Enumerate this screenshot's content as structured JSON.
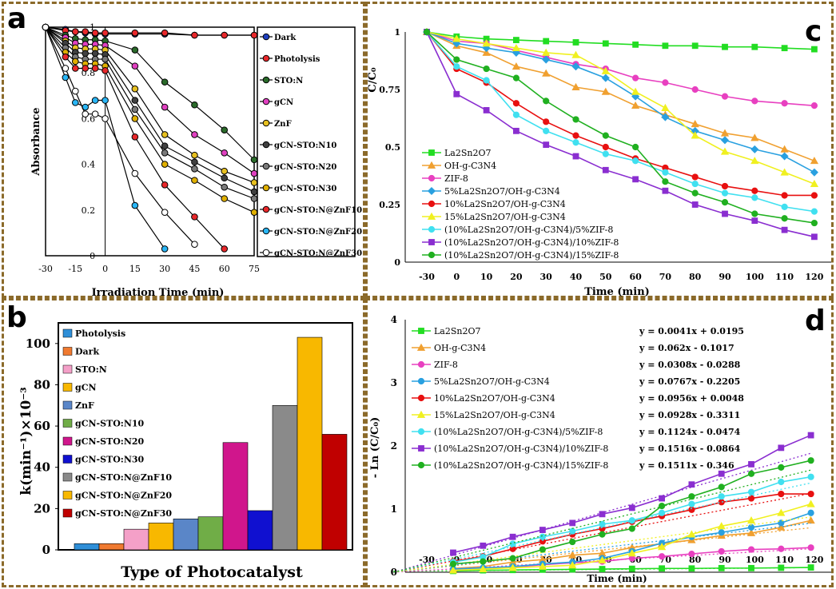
{
  "chart_data": [
    {
      "panel": "a",
      "type": "line",
      "xlabel": "Irradiation Time (min)",
      "ylabel": "Absorbance",
      "x": [
        -30,
        -20,
        -15,
        -10,
        -5,
        0,
        15,
        30,
        45,
        60,
        75
      ],
      "xticks": [
        "-30",
        "-15",
        "0",
        "15",
        "30",
        "45",
        "60",
        "75"
      ],
      "yticks": [
        "0",
        "0.2",
        "0.4",
        "0.6",
        "0.8",
        "1"
      ],
      "xlim": [
        -30,
        75
      ],
      "ylim": [
        0,
        1
      ],
      "series": [
        {
          "name": "Dark",
          "color": "#1f3fbf",
          "values": [
            1,
            0.99,
            0.98,
            0.975,
            0.97,
            0.97,
            0.97,
            0.97,
            0.965,
            0.965,
            0.965
          ]
        },
        {
          "name": "Photolysis",
          "color": "#e8282b",
          "values": [
            1,
            0.985,
            0.98,
            0.98,
            0.975,
            0.975,
            0.975,
            0.975,
            0.965,
            0.965,
            0.965
          ]
        },
        {
          "name": "STO:N",
          "color": "#2a6a2a",
          "values": [
            1,
            0.965,
            0.95,
            0.945,
            0.945,
            0.94,
            0.9,
            0.76,
            0.66,
            0.55,
            0.42
          ]
        },
        {
          "name": "gCN",
          "color": "#e040c0",
          "values": [
            1,
            0.955,
            0.93,
            0.925,
            0.925,
            0.92,
            0.83,
            0.65,
            0.53,
            0.45,
            0.36
          ]
        },
        {
          "name": "ZnF",
          "color": "#e7c020",
          "values": [
            1,
            0.94,
            0.91,
            0.905,
            0.905,
            0.9,
            0.73,
            0.53,
            0.44,
            0.37,
            0.32
          ]
        },
        {
          "name": "gCN-STO:N10",
          "color": "#404040",
          "values": [
            1,
            0.93,
            0.89,
            0.885,
            0.885,
            0.88,
            0.68,
            0.48,
            0.41,
            0.34,
            0.28
          ]
        },
        {
          "name": "gCN-STO:N20",
          "color": "#7a7a7a",
          "values": [
            1,
            0.91,
            0.87,
            0.86,
            0.86,
            0.86,
            0.64,
            0.45,
            0.38,
            0.3,
            0.25
          ]
        },
        {
          "name": "gCN-STO:N30",
          "color": "#e0b000",
          "values": [
            1,
            0.89,
            0.85,
            0.84,
            0.84,
            0.83,
            0.6,
            0.4,
            0.33,
            0.25,
            0.19
          ]
        },
        {
          "name": "gCN-STO:N@ZnF10",
          "color": "#e8282b",
          "values": [
            1,
            0.87,
            0.82,
            0.82,
            0.82,
            0.81,
            0.52,
            0.31,
            0.17,
            0.03,
            null
          ]
        },
        {
          "name": "gCN-STO:N@ZnF20",
          "color": "#29b6f6",
          "values": [
            1,
            0.78,
            0.67,
            0.65,
            0.68,
            0.68,
            0.22,
            0.03,
            null,
            null,
            null
          ]
        },
        {
          "name": "gCN-STO:N@ZnF30",
          "color": "#ffffff",
          "values": [
            1,
            0.82,
            0.72,
            0.62,
            0.62,
            0.6,
            0.36,
            0.19,
            0.05,
            null,
            null
          ]
        }
      ]
    },
    {
      "panel": "b",
      "type": "bar",
      "xlabel": "Type of Photocatalyst",
      "ylabel": "k(min⁻¹)×10⁻³",
      "ylim": [
        0,
        110
      ],
      "yticks": [
        "0",
        "20",
        "40",
        "60",
        "80",
        "100"
      ],
      "categories": [
        "Photolysis",
        "Dark",
        "STO:N",
        "gCN",
        "ZnF",
        "gCN-STO:N10",
        "gCN-STO:N20",
        "gCN-STO:N30",
        "gCN-STO:N@ZnF10",
        "gCN-STO:N@ZnF20",
        "gCN-STO:N@ZnF30"
      ],
      "colors": [
        "#2f8fd8",
        "#f07a30",
        "#f4a0c8",
        "#f8b800",
        "#5a86c8",
        "#70ad47",
        "#d0168c",
        "#1010d0",
        "#8a8a8a",
        "#f8b800",
        "#c00000"
      ],
      "values": [
        3,
        3,
        10,
        13,
        15,
        16,
        52,
        19,
        70,
        103,
        56
      ]
    },
    {
      "panel": "c",
      "type": "line",
      "xlabel": "Time  (min)",
      "ylabel": "C/C₀",
      "x": [
        -30,
        0,
        10,
        20,
        30,
        40,
        50,
        60,
        70,
        80,
        90,
        100,
        110,
        120
      ],
      "xticks": [
        "-30",
        "0",
        "10",
        "20",
        "30",
        "40",
        "50",
        "60",
        "70",
        "80",
        "90",
        "100",
        "110",
        "120"
      ],
      "yticks": [
        "0",
        "0.25",
        "0.5",
        "0.75",
        "1"
      ],
      "ylim": [
        0,
        1
      ],
      "series": [
        {
          "name": "La2Sn2O7",
          "color": "#22dd22",
          "marker": "square",
          "values": [
            1,
            0.98,
            0.97,
            0.965,
            0.96,
            0.955,
            0.95,
            0.945,
            0.94,
            0.94,
            0.935,
            0.935,
            0.93,
            0.925
          ]
        },
        {
          "name": "OH-g-C3N4",
          "color": "#f0a030",
          "marker": "triangle",
          "values": [
            1,
            0.94,
            0.91,
            0.85,
            0.82,
            0.76,
            0.74,
            0.68,
            0.64,
            0.6,
            0.56,
            0.54,
            0.49,
            0.44
          ]
        },
        {
          "name": "ZIF-8",
          "color": "#e840c0",
          "marker": "circle",
          "values": [
            1,
            0.96,
            0.95,
            0.92,
            0.89,
            0.86,
            0.84,
            0.8,
            0.78,
            0.75,
            0.72,
            0.7,
            0.69,
            0.68
          ]
        },
        {
          "name": "5%La2Sn2O7/OH-g-C3N4",
          "color": "#29a0e0",
          "marker": "diamond",
          "values": [
            1,
            0.95,
            0.93,
            0.91,
            0.88,
            0.85,
            0.8,
            0.72,
            0.63,
            0.57,
            0.53,
            0.49,
            0.46,
            0.39
          ]
        },
        {
          "name": "10%La2Sn2O7/OH-g-C3N4",
          "color": "#e81010",
          "marker": "circle",
          "values": [
            1,
            0.84,
            0.78,
            0.69,
            0.61,
            0.55,
            0.5,
            0.45,
            0.41,
            0.37,
            0.33,
            0.31,
            0.29,
            0.29
          ]
        },
        {
          "name": "15%La2Sn2O7/OH-g-C3N4",
          "color": "#f0f020",
          "marker": "triangle",
          "values": [
            1,
            0.97,
            0.95,
            0.93,
            0.91,
            0.9,
            0.83,
            0.74,
            0.67,
            0.55,
            0.48,
            0.44,
            0.39,
            0.34
          ]
        },
        {
          "name": "(10%La2Sn2O7/OH-g-C3N4)/5%ZIF-8",
          "color": "#40e0f0",
          "marker": "circle",
          "values": [
            1,
            0.85,
            0.79,
            0.64,
            0.57,
            0.52,
            0.47,
            0.44,
            0.39,
            0.34,
            0.3,
            0.28,
            0.24,
            0.22
          ]
        },
        {
          "name": "(10%La2Sn2O7/OH-g-C3N4)/10%ZIF-8",
          "color": "#8a2ed0",
          "marker": "square",
          "values": [
            1,
            0.73,
            0.66,
            0.57,
            0.51,
            0.46,
            0.4,
            0.36,
            0.31,
            0.25,
            0.21,
            0.18,
            0.14,
            0.11
          ]
        },
        {
          "name": "(10%La2Sn2O7/OH-g-C3N4)/15%ZIF-8",
          "color": "#20b020",
          "marker": "circle",
          "values": [
            1,
            0.88,
            0.84,
            0.8,
            0.7,
            0.62,
            0.55,
            0.5,
            0.35,
            0.3,
            0.26,
            0.21,
            0.19,
            0.17
          ]
        }
      ]
    },
    {
      "panel": "d",
      "type": "line",
      "xlabel": "Time (min)",
      "ylabel": "- Ln (C/C₀)",
      "xticks": [
        "-30",
        "0",
        "10",
        "20",
        "30",
        "40",
        "50",
        "60",
        "70",
        "80",
        "90",
        "100",
        "110",
        "120"
      ],
      "yticks": [
        "0",
        "1",
        "2",
        "3",
        "4"
      ],
      "ylim": [
        0,
        4
      ],
      "x": [
        0,
        10,
        20,
        30,
        40,
        50,
        60,
        70,
        80,
        90,
        100,
        110,
        120
      ],
      "series": [
        {
          "name": "La2Sn2O7",
          "color": "#22dd22",
          "marker": "square",
          "equation": "y = 0.0041x + 0.0195",
          "values": [
            0.02,
            0.03,
            0.035,
            0.04,
            0.045,
            0.05,
            0.055,
            0.06,
            0.06,
            0.065,
            0.065,
            0.07,
            0.075
          ]
        },
        {
          "name": "OH-g-C3N4",
          "color": "#f0a030",
          "marker": "triangle",
          "equation": "y = 0.062x - 0.1017",
          "values": [
            0.06,
            0.09,
            0.16,
            0.2,
            0.27,
            0.3,
            0.39,
            0.45,
            0.51,
            0.58,
            0.62,
            0.71,
            0.82
          ]
        },
        {
          "name": "ZIF-8",
          "color": "#e840c0",
          "marker": "circle",
          "equation": "y = 0.0308x - 0.0288",
          "values": [
            0.04,
            0.05,
            0.08,
            0.12,
            0.15,
            0.17,
            0.22,
            0.25,
            0.29,
            0.33,
            0.36,
            0.37,
            0.39
          ]
        },
        {
          "name": "5%La2Sn2O7/OH-g-C3N4",
          "color": "#29a0e0",
          "marker": "circle",
          "equation": "y = 0.0767x - 0.2205",
          "values": [
            0.05,
            0.07,
            0.09,
            0.13,
            0.16,
            0.22,
            0.33,
            0.46,
            0.56,
            0.63,
            0.71,
            0.78,
            0.94
          ]
        },
        {
          "name": "10%La2Sn2O7/OH-g-C3N4",
          "color": "#e81010",
          "marker": "circle",
          "equation": "y = 0.0956x + 0.0048",
          "values": [
            0.17,
            0.25,
            0.37,
            0.49,
            0.6,
            0.69,
            0.8,
            0.89,
            0.99,
            1.11,
            1.17,
            1.24,
            1.24
          ]
        },
        {
          "name": "15%La2Sn2O7/OH-g-C3N4",
          "color": "#f0f020",
          "marker": "triangle",
          "equation": "y = 0.0928x - 0.3311",
          "values": [
            0.03,
            0.05,
            0.07,
            0.09,
            0.11,
            0.19,
            0.3,
            0.4,
            0.6,
            0.73,
            0.82,
            0.94,
            1.08
          ]
        },
        {
          "name": "(10%La2Sn2O7/OH-g-C3N4)/5%ZIF-8",
          "color": "#40e0f0",
          "marker": "circle",
          "equation": "y = 0.1124x - 0.0474",
          "values": [
            0.16,
            0.24,
            0.45,
            0.56,
            0.65,
            0.76,
            0.82,
            0.94,
            1.08,
            1.2,
            1.27,
            1.43,
            1.51
          ]
        },
        {
          "name": "(10%La2Sn2O7/OH-g-C3N4)/10%ZIF-8",
          "color": "#8a2ed0",
          "marker": "square",
          "equation": "y = 0.1516x - 0.0864",
          "values": [
            0.31,
            0.42,
            0.56,
            0.67,
            0.78,
            0.92,
            1.02,
            1.17,
            1.39,
            1.56,
            1.71,
            1.97,
            2.17
          ]
        },
        {
          "name": "(10%La2Sn2O7/OH-g-C3N4)/15%ZIF-8",
          "color": "#20b020",
          "marker": "circle",
          "equation": "y = 0.1511x - 0.346",
          "values": [
            0.13,
            0.17,
            0.22,
            0.36,
            0.48,
            0.6,
            0.69,
            1.05,
            1.2,
            1.35,
            1.56,
            1.66,
            1.77
          ]
        }
      ]
    }
  ]
}
